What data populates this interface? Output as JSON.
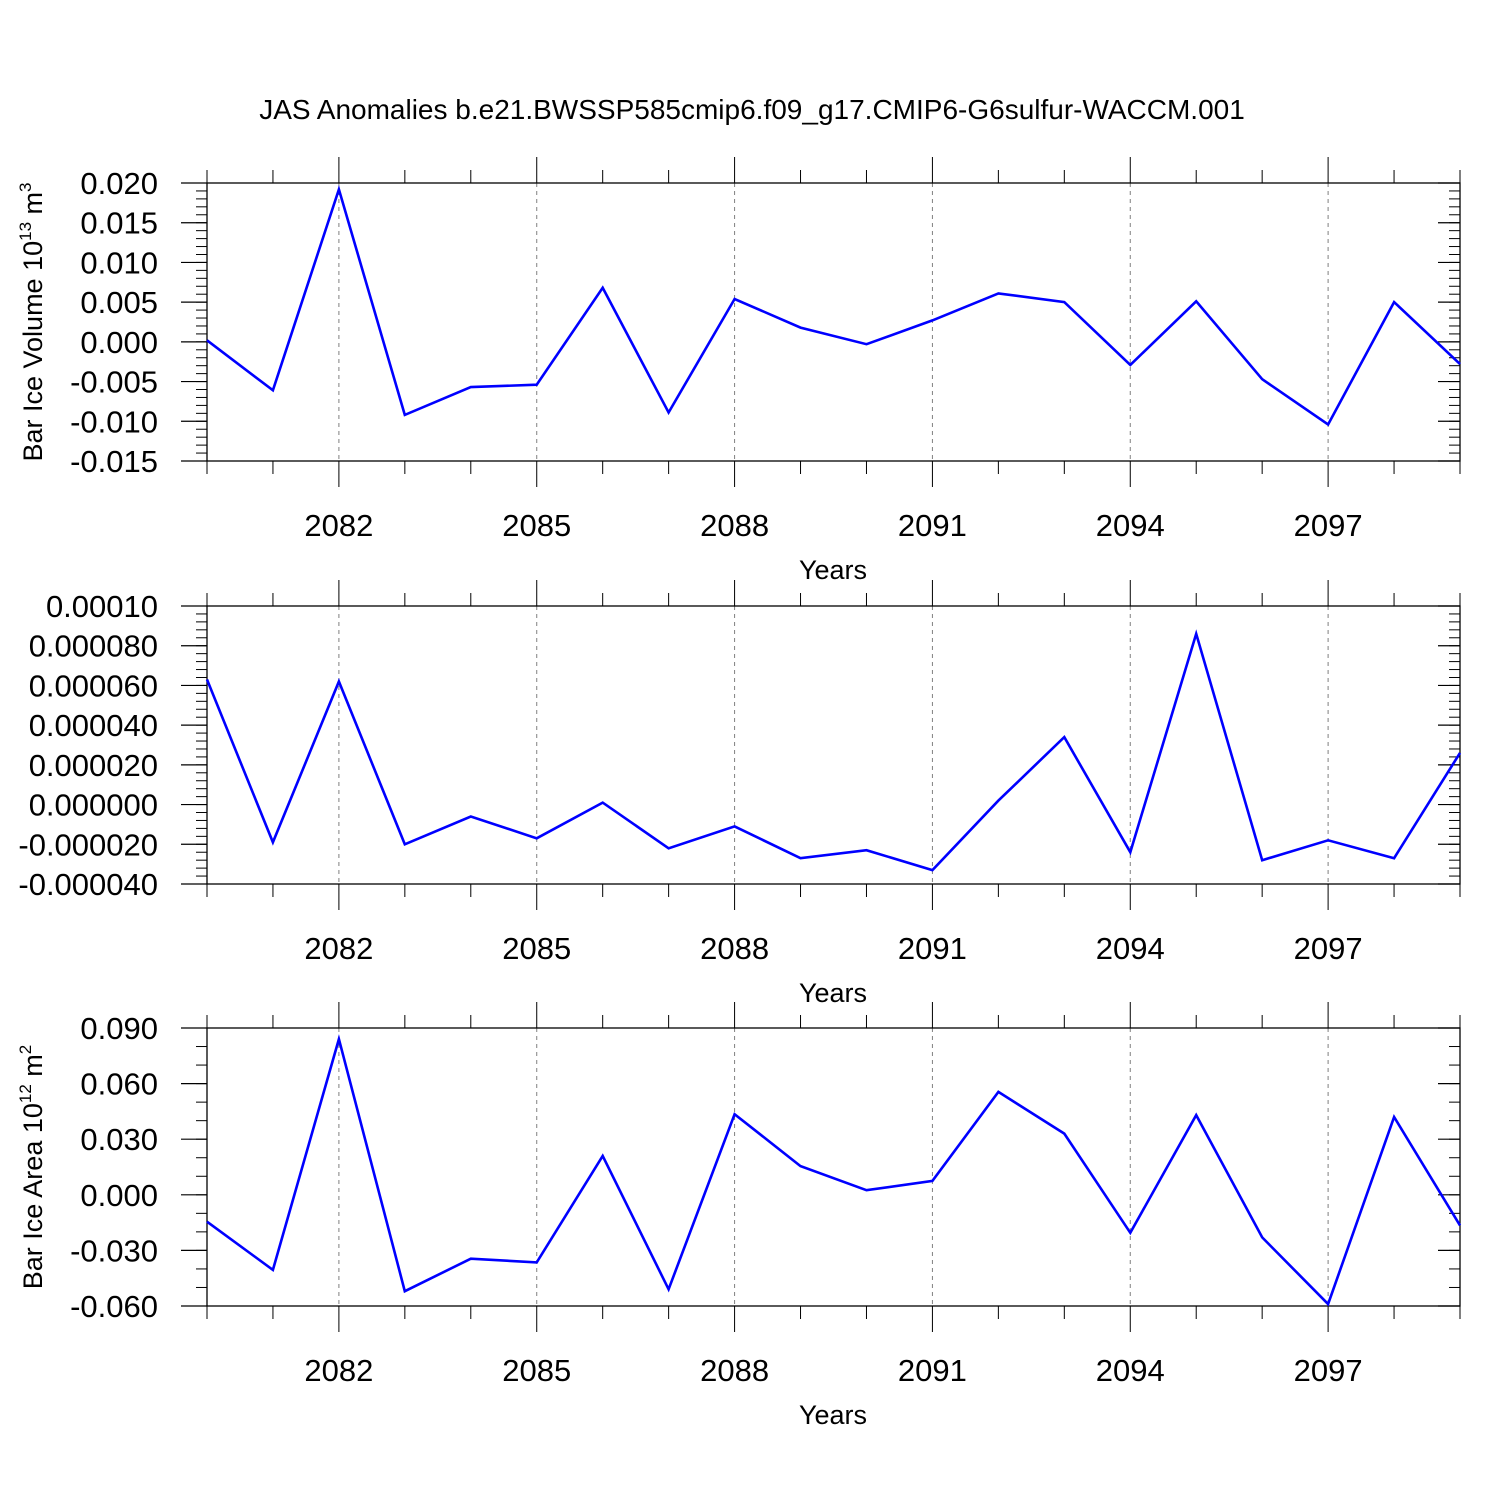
{
  "title": "JAS Anomalies b.e21.BWSSP585cmip6.f09_g17.CMIP6-G6sulfur-WACCM.001",
  "colors": {
    "series": "#0000ff",
    "axis": "#000000",
    "grid": "#808080"
  },
  "chart_data": [
    {
      "type": "line",
      "ylabel": "Bar Ice Volume 10",
      "ylabel_sup": "13",
      "ylabel_unit": " m",
      "ylabel_unit_sup": "3",
      "xlabel": "Years",
      "xlim": [
        2080,
        2099
      ],
      "ylim": [
        -0.015,
        0.02
      ],
      "x_ticks": [
        2082,
        2085,
        2088,
        2091,
        2094,
        2097
      ],
      "x_tick_labels": [
        "2082",
        "2085",
        "2088",
        "2091",
        "2094",
        "2097"
      ],
      "y_ticks": [
        -0.015,
        -0.01,
        -0.005,
        0.0,
        0.005,
        0.01,
        0.015,
        0.02
      ],
      "y_tick_labels": [
        "-0.015",
        "-0.010",
        "-0.005",
        "0.000",
        "0.005",
        "0.010",
        "0.015",
        "0.020"
      ],
      "y_minor_step": 0.001,
      "grid": "vertical dashed at major x ticks",
      "x": [
        2080,
        2081,
        2082,
        2083,
        2084,
        2085,
        2086,
        2087,
        2088,
        2089,
        2090,
        2091,
        2092,
        2093,
        2094,
        2095,
        2096,
        2097,
        2098,
        2099
      ],
      "values": [
        0.0002,
        -0.0061,
        0.0192,
        -0.0092,
        -0.0057,
        -0.0054,
        0.0068,
        -0.0089,
        0.0054,
        0.0018,
        -0.0003,
        0.0027,
        0.0061,
        0.005,
        -0.0029,
        0.0051,
        -0.0047,
        -0.0104,
        0.005,
        -0.0028
      ]
    },
    {
      "type": "line",
      "ylabel": "",
      "xlabel": "Years",
      "xlim": [
        2080,
        2099
      ],
      "ylim": [
        -4e-05,
        0.0001
      ],
      "x_ticks": [
        2082,
        2085,
        2088,
        2091,
        2094,
        2097
      ],
      "x_tick_labels": [
        "2082",
        "2085",
        "2088",
        "2091",
        "2094",
        "2097"
      ],
      "y_ticks": [
        -4e-05,
        -2e-05,
        0.0,
        2e-05,
        4e-05,
        6e-05,
        8e-05,
        0.0001
      ],
      "y_tick_labels": [
        "-0.000040",
        "-0.000020",
        "0.000000",
        "0.000020",
        "0.000040",
        "0.000060",
        "0.000080",
        "0.00010"
      ],
      "y_minor_step": 4e-06,
      "grid": "vertical dashed at major x ticks",
      "x": [
        2080,
        2081,
        2082,
        2083,
        2084,
        2085,
        2086,
        2087,
        2088,
        2089,
        2090,
        2091,
        2092,
        2093,
        2094,
        2095,
        2096,
        2097,
        2098,
        2099
      ],
      "values": [
        6.3e-05,
        -1.9e-05,
        6.2e-05,
        -2e-05,
        -6e-06,
        -1.7e-05,
        1e-06,
        -2.2e-05,
        -1.1e-05,
        -2.7e-05,
        -2.3e-05,
        -3.3e-05,
        2e-06,
        3.4e-05,
        -2.4e-05,
        8.6e-05,
        -2.8e-05,
        -1.8e-05,
        -2.7e-05,
        2.6e-05
      ]
    },
    {
      "type": "line",
      "ylabel": "Bar Ice Area 10",
      "ylabel_sup": "12",
      "ylabel_unit": " m",
      "ylabel_unit_sup": "2",
      "xlabel": "Years",
      "xlim": [
        2080,
        2099
      ],
      "ylim": [
        -0.06,
        0.09
      ],
      "x_ticks": [
        2082,
        2085,
        2088,
        2091,
        2094,
        2097
      ],
      "x_tick_labels": [
        "2082",
        "2085",
        "2088",
        "2091",
        "2094",
        "2097"
      ],
      "y_ticks": [
        -0.06,
        -0.03,
        0.0,
        0.03,
        0.06,
        0.09
      ],
      "y_tick_labels": [
        "-0.060",
        "-0.030",
        "0.000",
        "0.030",
        "0.060",
        "0.090"
      ],
      "y_minor_step": 0.01,
      "grid": "vertical dashed at major x ticks",
      "x": [
        2080,
        2081,
        2082,
        2083,
        2084,
        2085,
        2086,
        2087,
        2088,
        2089,
        2090,
        2091,
        2092,
        2093,
        2094,
        2095,
        2096,
        2097,
        2098,
        2099
      ],
      "values": [
        -0.0145,
        -0.0405,
        0.084,
        -0.052,
        -0.0345,
        -0.0365,
        0.021,
        -0.051,
        0.0435,
        0.0155,
        0.0025,
        0.0075,
        0.0555,
        0.033,
        -0.0205,
        0.043,
        -0.023,
        -0.059,
        0.042,
        -0.0165
      ]
    }
  ]
}
